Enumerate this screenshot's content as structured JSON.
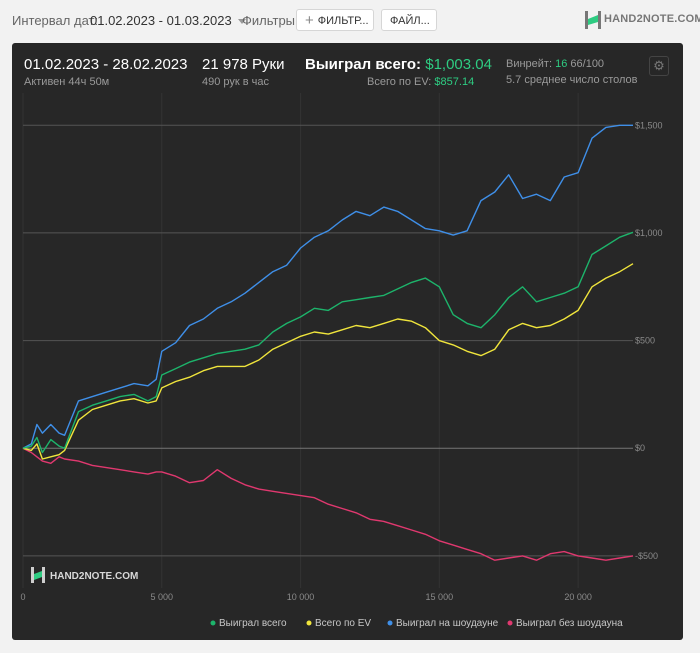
{
  "toolbar": {
    "date_label": "Интервал дат:",
    "date_range": "01.02.2023 - 01.03.2023",
    "filters_label": "Фильтры:",
    "filter_button": "ФИЛЬТР...",
    "files_button": "ФАЙЛ...",
    "logo_text": "HAND2NOTE.COM"
  },
  "stats": {
    "period": "01.02.2023 - 28.02.2023",
    "active": "Активен 44ч 50м",
    "hands": "21 978 Руки",
    "hands_per_hour": "490 рук в час",
    "won_label": "Выиграл всего:",
    "won_value": "$1,003.04",
    "ev_label": "Всего по EV:",
    "ev_value": "$857.14",
    "winrate_label": "Винрейт:",
    "winrate_value": "16",
    "winrate_unit": "66/100",
    "avg_tables": "5.7 среднее число столов"
  },
  "colors": {
    "won": "#1db46b",
    "ev": "#f0e53c",
    "showdown": "#3f8fe8",
    "nonshowdown": "#e0386f"
  },
  "chart_data": {
    "type": "line",
    "x_ticks": [
      0,
      5000,
      10000,
      15000,
      20000
    ],
    "x_tick_labels": [
      "0",
      "5 000",
      "10 000",
      "15 000",
      "20 000"
    ],
    "y_ticks": [
      -500,
      0,
      500,
      1000,
      1500
    ],
    "y_tick_labels": [
      "-$500",
      "$0",
      "$500",
      "$1,000",
      "$1,500"
    ],
    "xlim": [
      0,
      21978
    ],
    "ylim": [
      -640,
      1650
    ],
    "watermark": "HAND2NOTE.COM",
    "series": [
      {
        "name": "Выиграл всего",
        "key": "won",
        "x": [
          0,
          300,
          500,
          700,
          1000,
          1300,
          1500,
          2000,
          2500,
          3000,
          3500,
          4000,
          4500,
          4800,
          5000,
          5500,
          6000,
          6500,
          7000,
          7500,
          8000,
          8500,
          9000,
          9500,
          10000,
          10500,
          11000,
          11500,
          12000,
          12500,
          13000,
          13500,
          14000,
          14500,
          15000,
          15500,
          16000,
          16500,
          17000,
          17500,
          18000,
          18500,
          19000,
          19500,
          20000,
          20500,
          21000,
          21500,
          21978
        ],
        "y": [
          0,
          10,
          50,
          -20,
          40,
          10,
          0,
          170,
          200,
          220,
          240,
          250,
          220,
          240,
          340,
          370,
          400,
          420,
          440,
          450,
          460,
          480,
          540,
          580,
          610,
          650,
          640,
          680,
          690,
          700,
          710,
          740,
          770,
          790,
          750,
          620,
          580,
          560,
          620,
          700,
          750,
          680,
          700,
          720,
          750,
          900,
          940,
          980,
          1003
        ]
      },
      {
        "name": "Всего по EV",
        "key": "ev",
        "x": [
          0,
          300,
          500,
          700,
          1000,
          1300,
          1500,
          2000,
          2500,
          3000,
          3500,
          4000,
          4500,
          4800,
          5000,
          5500,
          6000,
          6500,
          7000,
          7500,
          8000,
          8500,
          9000,
          9500,
          10000,
          10500,
          11000,
          11500,
          12000,
          12500,
          13000,
          13500,
          14000,
          14500,
          15000,
          15500,
          16000,
          16500,
          17000,
          17500,
          18000,
          18500,
          19000,
          19500,
          20000,
          20500,
          21000,
          21500,
          21978
        ],
        "y": [
          0,
          -10,
          20,
          -50,
          -40,
          -30,
          -10,
          130,
          180,
          200,
          220,
          230,
          210,
          220,
          280,
          310,
          330,
          360,
          380,
          380,
          380,
          410,
          460,
          490,
          520,
          540,
          530,
          550,
          570,
          560,
          580,
          600,
          590,
          560,
          500,
          480,
          450,
          430,
          460,
          550,
          580,
          560,
          570,
          600,
          640,
          750,
          790,
          820,
          857
        ]
      },
      {
        "name": "Выиграл на шоудауне",
        "key": "showdown",
        "x": [
          0,
          300,
          500,
          700,
          1000,
          1300,
          1500,
          2000,
          2500,
          3000,
          3500,
          4000,
          4500,
          4800,
          5000,
          5500,
          6000,
          6500,
          7000,
          7500,
          8000,
          8500,
          9000,
          9500,
          10000,
          10500,
          11000,
          11500,
          12000,
          12500,
          13000,
          13500,
          14000,
          14500,
          15000,
          15500,
          16000,
          16500,
          17000,
          17500,
          18000,
          18500,
          19000,
          19500,
          20000,
          20500,
          21000,
          21500,
          21978
        ],
        "y": [
          0,
          20,
          110,
          70,
          110,
          70,
          60,
          220,
          240,
          260,
          280,
          300,
          290,
          320,
          450,
          490,
          570,
          600,
          650,
          680,
          720,
          770,
          820,
          850,
          930,
          980,
          1010,
          1060,
          1100,
          1080,
          1120,
          1100,
          1060,
          1020,
          1010,
          990,
          1010,
          1150,
          1190,
          1270,
          1160,
          1180,
          1150,
          1260,
          1280,
          1440,
          1490,
          1500,
          1500
        ]
      },
      {
        "name": "Выиграл без шоудауна",
        "key": "nonshowdown",
        "x": [
          0,
          300,
          500,
          700,
          1000,
          1300,
          1500,
          2000,
          2500,
          3000,
          3500,
          4000,
          4500,
          4800,
          5000,
          5500,
          6000,
          6500,
          7000,
          7500,
          8000,
          8500,
          9000,
          9500,
          10000,
          10500,
          11000,
          11500,
          12000,
          12500,
          13000,
          13500,
          14000,
          14500,
          15000,
          15500,
          16000,
          16500,
          17000,
          17500,
          18000,
          18500,
          19000,
          19500,
          20000,
          20500,
          21000,
          21500,
          21978
        ],
        "y": [
          0,
          -20,
          -40,
          -60,
          -70,
          -40,
          -50,
          -60,
          -80,
          -90,
          -100,
          -110,
          -120,
          -110,
          -110,
          -130,
          -160,
          -150,
          -100,
          -140,
          -170,
          -190,
          -200,
          -210,
          -220,
          -230,
          -260,
          -280,
          -300,
          -330,
          -340,
          -360,
          -380,
          -400,
          -430,
          -450,
          -470,
          -490,
          -520,
          -510,
          -500,
          -520,
          -490,
          -480,
          -500,
          -510,
          -520,
          -510,
          -500
        ]
      }
    ]
  }
}
